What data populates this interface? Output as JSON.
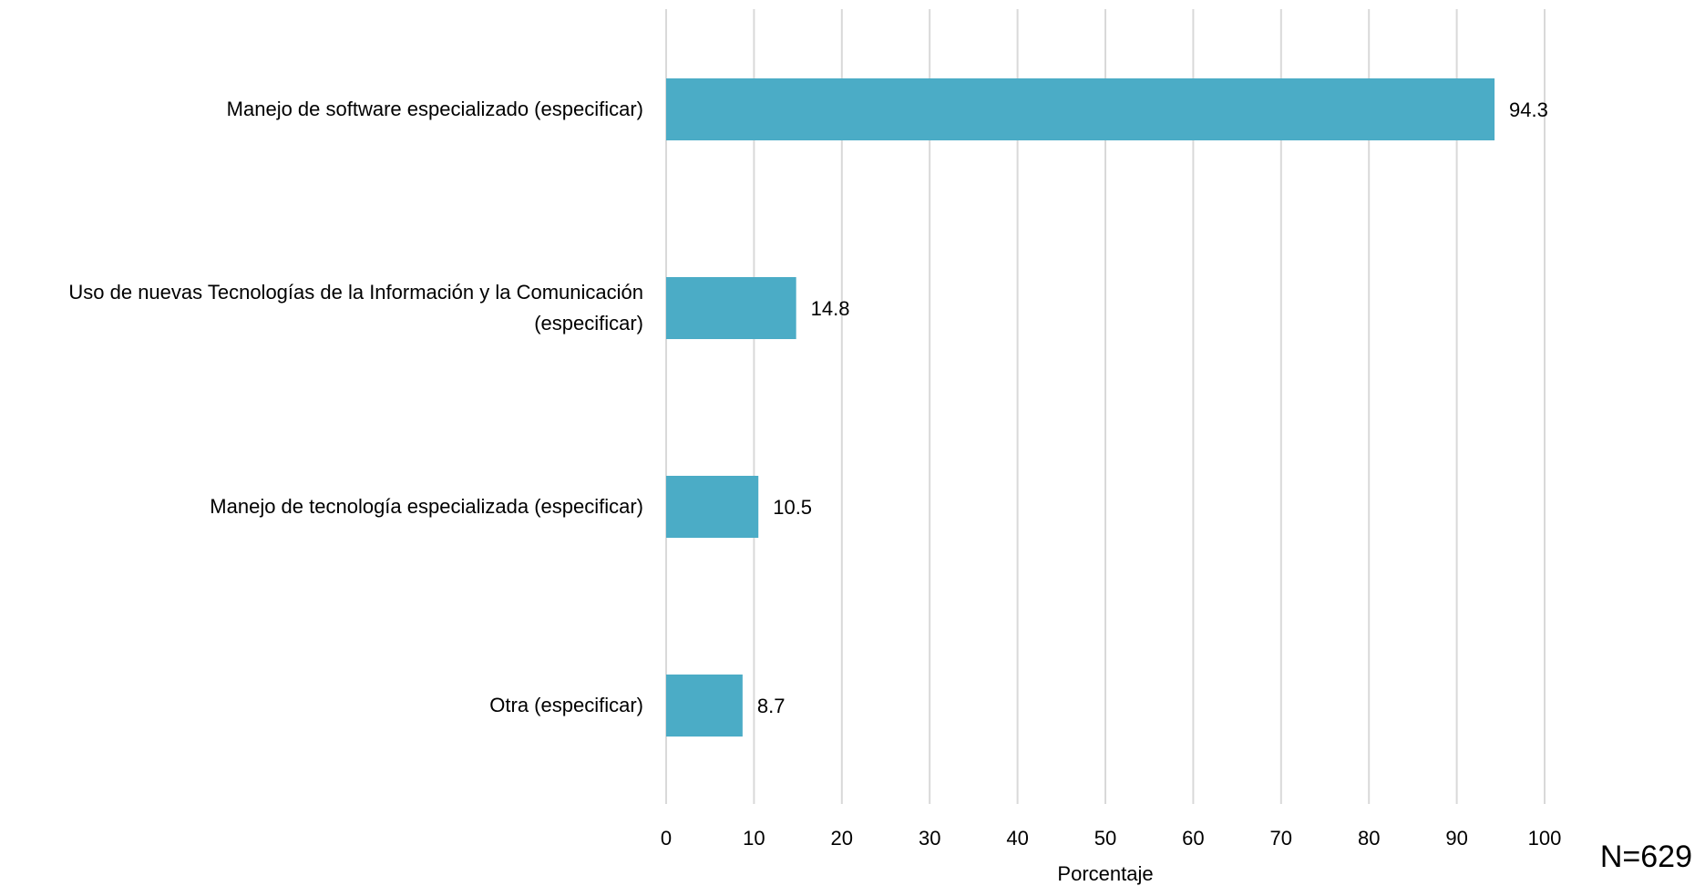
{
  "chart_data": {
    "type": "bar",
    "orientation": "horizontal",
    "categories": [
      "Manejo de software especializado (especificar)",
      "Uso de nuevas Tecnologías de la Información y la Comunicación (especificar)",
      "Manejo de tecnología especializada (especificar)",
      "Otra (especificar)"
    ],
    "values": [
      94.3,
      14.8,
      10.5,
      8.7
    ],
    "data_labels": [
      "94.3",
      "14.8",
      "10.5",
      "8.7"
    ],
    "xlabel": "Porcentaje",
    "ylabel": "",
    "xlim": [
      0,
      100
    ],
    "x_ticks": [
      0,
      10,
      20,
      30,
      40,
      50,
      60,
      70,
      80,
      90,
      100
    ],
    "grid": "vertical",
    "bar_color": "#4BACC6",
    "gridline_color": "#D9D9D9"
  },
  "note": "N=629"
}
